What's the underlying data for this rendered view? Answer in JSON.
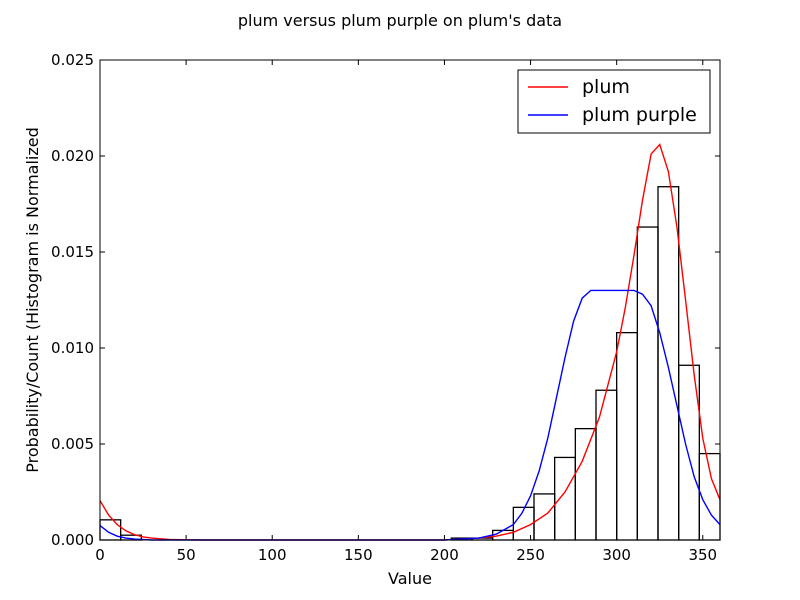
{
  "chart_data": {
    "type": "histogram",
    "title": "plum versus plum purple on plum's data",
    "xlabel": "Value",
    "ylabel": "Probability/Count (Histogram is Normalized",
    "xlim": [
      0,
      360
    ],
    "ylim": [
      0,
      0.025
    ],
    "x_ticks": [
      "0",
      "50",
      "100",
      "150",
      "200",
      "250",
      "300",
      "350"
    ],
    "y_ticks": [
      "0.000",
      "0.005",
      "0.010",
      "0.015",
      "0.020",
      "0.025"
    ],
    "grid": false,
    "legend_position": "top-right",
    "histogram": {
      "bin_width": 12,
      "bins": [
        {
          "x0": 0,
          "value": 0.00105
        },
        {
          "x0": 12,
          "value": 0.00025
        },
        {
          "x0": 24,
          "value": 0.0
        },
        {
          "x0": 36,
          "value": 0.0
        },
        {
          "x0": 48,
          "value": 0.0
        },
        {
          "x0": 60,
          "value": 0.0
        },
        {
          "x0": 72,
          "value": 0.0
        },
        {
          "x0": 84,
          "value": 0.0
        },
        {
          "x0": 96,
          "value": 0.0
        },
        {
          "x0": 108,
          "value": 0.0
        },
        {
          "x0": 120,
          "value": 0.0
        },
        {
          "x0": 132,
          "value": 0.0
        },
        {
          "x0": 144,
          "value": 0.0
        },
        {
          "x0": 156,
          "value": 0.0
        },
        {
          "x0": 168,
          "value": 0.0
        },
        {
          "x0": 180,
          "value": 0.0
        },
        {
          "x0": 192,
          "value": 0.0
        },
        {
          "x0": 204,
          "value": 0.0001
        },
        {
          "x0": 216,
          "value": 0.0001
        },
        {
          "x0": 228,
          "value": 0.0005
        },
        {
          "x0": 240,
          "value": 0.0017
        },
        {
          "x0": 252,
          "value": 0.0024
        },
        {
          "x0": 264,
          "value": 0.0043
        },
        {
          "x0": 276,
          "value": 0.0058
        },
        {
          "x0": 288,
          "value": 0.0078
        },
        {
          "x0": 300,
          "value": 0.0108
        },
        {
          "x0": 312,
          "value": 0.0163
        },
        {
          "x0": 324,
          "value": 0.0184
        },
        {
          "x0": 336,
          "value": 0.0091
        },
        {
          "x0": 348,
          "value": 0.0045
        }
      ]
    },
    "series": [
      {
        "name": "plum",
        "color": "#ff0000",
        "x": [
          0,
          5,
          10,
          15,
          20,
          25,
          30,
          40,
          50,
          60,
          200,
          220,
          230,
          240,
          250,
          260,
          270,
          280,
          290,
          300,
          305,
          310,
          315,
          320,
          325,
          330,
          335,
          340,
          345,
          350,
          355,
          360
        ],
        "y": [
          0.00205,
          0.0013,
          0.0008,
          0.00048,
          0.00028,
          0.00016,
          0.0001,
          3e-05,
          1e-05,
          0.0,
          0.0,
          0.0001,
          0.0002,
          0.0004,
          0.0008,
          0.0014,
          0.0025,
          0.0041,
          0.0064,
          0.0098,
          0.0121,
          0.0148,
          0.0177,
          0.0201,
          0.0206,
          0.0192,
          0.0163,
          0.0125,
          0.0086,
          0.0053,
          0.0032,
          0.0021
        ]
      },
      {
        "name": "plum purple",
        "color": "#0000ff",
        "x": [
          0,
          5,
          10,
          15,
          20,
          30,
          40,
          200,
          220,
          230,
          240,
          245,
          250,
          255,
          260,
          265,
          270,
          275,
          280,
          285,
          290,
          300,
          310,
          315,
          320,
          325,
          330,
          335,
          340,
          345,
          350,
          355,
          360
        ],
        "y": [
          0.00075,
          0.0004,
          0.0002,
          0.0001,
          5e-05,
          0.0,
          0.0,
          0.0,
          0.0001,
          0.0003,
          0.0008,
          0.0014,
          0.0023,
          0.0036,
          0.0053,
          0.0074,
          0.0095,
          0.0114,
          0.0126,
          0.013,
          0.013,
          0.013,
          0.013,
          0.0128,
          0.0122,
          0.0108,
          0.009,
          0.007,
          0.005,
          0.0033,
          0.0021,
          0.0013,
          0.0008
        ]
      }
    ]
  }
}
